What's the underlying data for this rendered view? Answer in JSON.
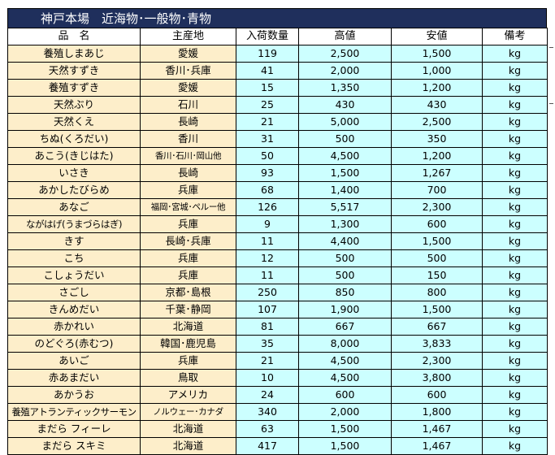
{
  "title": "神戸本場　近海物･一般物･青物",
  "headers": {
    "name": "品　名",
    "origin": "主産地",
    "qty": "入荷数量",
    "high": "高値",
    "low": "安値",
    "remark": "備考"
  },
  "rows": [
    {
      "name": "養殖しまあじ",
      "origin": "愛媛",
      "qty": "119",
      "high": "2,500",
      "low": "1,500",
      "unit": "kg"
    },
    {
      "name": "天然すずき",
      "origin": "香川･兵庫",
      "qty": "41",
      "high": "2,000",
      "low": "1,000",
      "unit": "kg"
    },
    {
      "name": "養殖すずき",
      "origin": "愛媛",
      "qty": "15",
      "high": "1,350",
      "low": "1,200",
      "unit": "kg"
    },
    {
      "name": "天然ぶり",
      "origin": "石川",
      "qty": "25",
      "high": "430",
      "low": "430",
      "unit": "kg"
    },
    {
      "name": "天然くえ",
      "origin": "長崎",
      "qty": "21",
      "high": "5,000",
      "low": "2,500",
      "unit": "kg"
    },
    {
      "name": "ちぬ(くろだい)",
      "origin": "香川",
      "qty": "31",
      "high": "500",
      "low": "350",
      "unit": "kg"
    },
    {
      "name": "あこう(きじはた)",
      "origin": "香川･石川･岡山他",
      "qty": "50",
      "high": "4,500",
      "low": "1,200",
      "unit": "kg"
    },
    {
      "name": "いさき",
      "origin": "長崎",
      "qty": "93",
      "high": "1,500",
      "low": "1,267",
      "unit": "kg"
    },
    {
      "name": "あかしたびらめ",
      "origin": "兵庫",
      "qty": "68",
      "high": "1,400",
      "low": "700",
      "unit": "kg"
    },
    {
      "name": "あなご",
      "origin": "福岡･宮城･ペルー他",
      "qty": "126",
      "high": "5,517",
      "low": "2,300",
      "unit": "kg"
    },
    {
      "name": "ながはげ(うまづらはぎ)",
      "origin": "兵庫",
      "qty": "9",
      "high": "1,300",
      "low": "600",
      "unit": "kg"
    },
    {
      "name": "きす",
      "origin": "長崎･兵庫",
      "qty": "11",
      "high": "4,400",
      "low": "1,500",
      "unit": "kg"
    },
    {
      "name": "こち",
      "origin": "兵庫",
      "qty": "12",
      "high": "500",
      "low": "500",
      "unit": "kg"
    },
    {
      "name": "こしょうだい",
      "origin": "兵庫",
      "qty": "11",
      "high": "500",
      "low": "150",
      "unit": "kg"
    },
    {
      "name": "さごし",
      "origin": "京都･島根",
      "qty": "250",
      "high": "850",
      "low": "800",
      "unit": "kg"
    },
    {
      "name": "きんめだい",
      "origin": "千葉･静岡",
      "qty": "107",
      "high": "1,900",
      "low": "1,500",
      "unit": "kg"
    },
    {
      "name": "赤かれい",
      "origin": "北海道",
      "qty": "81",
      "high": "667",
      "low": "667",
      "unit": "kg"
    },
    {
      "name": "のどぐろ(赤むつ)",
      "origin": "韓国･鹿児島",
      "qty": "35",
      "high": "8,000",
      "low": "3,833",
      "unit": "kg"
    },
    {
      "name": "あいご",
      "origin": "兵庫",
      "qty": "21",
      "high": "4,500",
      "low": "2,300",
      "unit": "kg"
    },
    {
      "name": "赤あまだい",
      "origin": "鳥取",
      "qty": "10",
      "high": "4,500",
      "low": "3,800",
      "unit": "kg"
    },
    {
      "name": "あかうお",
      "origin": "アメリカ",
      "qty": "24",
      "high": "600",
      "low": "600",
      "unit": "kg"
    },
    {
      "name": "養殖アトランティックサーモン",
      "origin": "ノルウェー･カナダ",
      "qty": "340",
      "high": "2,000",
      "low": "1,800",
      "unit": "kg"
    },
    {
      "name": "まだら フィーレ",
      "origin": "北海道",
      "qty": "63",
      "high": "1,500",
      "low": "1,467",
      "unit": "kg"
    },
    {
      "name": "まだら スキミ",
      "origin": "北海道",
      "qty": "417",
      "high": "1,500",
      "low": "1,467",
      "unit": "kg"
    }
  ]
}
